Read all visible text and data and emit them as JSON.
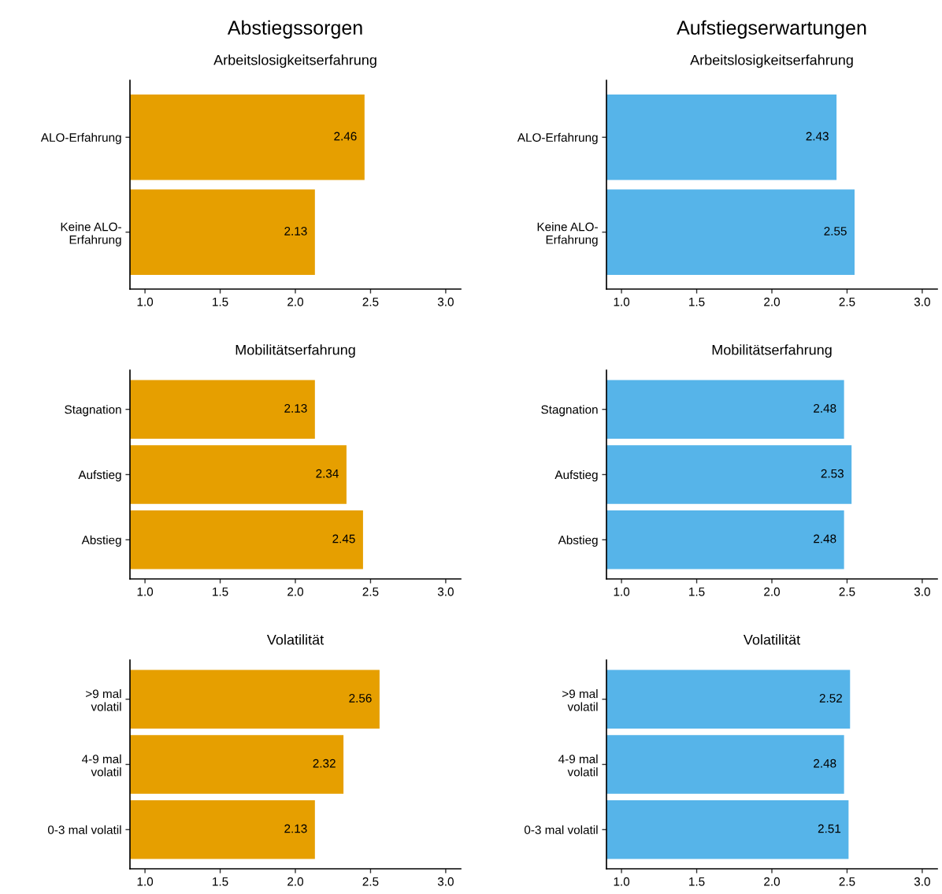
{
  "chart_data": [
    {
      "type": "bar",
      "orientation": "horizontal",
      "title": "Abstiegssorgen",
      "subtitle": "Arbeitslosigkeitserfahrung",
      "categories": [
        "ALO-Erfahrung",
        "Keine ALO-\nErfahrung"
      ],
      "values": [
        2.46,
        2.13
      ],
      "color": "#e69f00",
      "xlim": [
        0.9,
        3.1
      ],
      "xticks": [
        {
          "value": 1,
          "label": "1.0"
        },
        {
          "value": 1.5,
          "label": "1.5"
        },
        {
          "value": 2,
          "label": "2.0"
        },
        {
          "value": 2.5,
          "label": "2.5"
        },
        {
          "value": 3,
          "label": "3.0"
        }
      ],
      "data_labels": true,
      "grid": false,
      "legend": false
    },
    {
      "type": "bar",
      "orientation": "horizontal",
      "title": "Aufstiegserwartungen",
      "subtitle": "Arbeitslosigkeitserfahrung",
      "categories": [
        "ALO-Erfahrung",
        "Keine ALO-\nErfahrung"
      ],
      "values": [
        2.43,
        2.55
      ],
      "color": "#56b4e9",
      "xlim": [
        0.9,
        3.1
      ],
      "xticks": [
        {
          "value": 1,
          "label": "1.0"
        },
        {
          "value": 1.5,
          "label": "1.5"
        },
        {
          "value": 2,
          "label": "2.0"
        },
        {
          "value": 2.5,
          "label": "2.5"
        },
        {
          "value": 3,
          "label": "3.0"
        }
      ],
      "data_labels": true,
      "grid": false,
      "legend": false
    },
    {
      "type": "bar",
      "orientation": "horizontal",
      "subtitle": "Mobilitätserfahrung",
      "categories": [
        "Stagnation",
        "Aufstieg",
        "Abstieg"
      ],
      "values": [
        2.13,
        2.34,
        2.45
      ],
      "color": "#e69f00",
      "xlim": [
        0.9,
        3.1
      ],
      "xticks": [
        {
          "value": 1,
          "label": "1.0"
        },
        {
          "value": 1.5,
          "label": "1.5"
        },
        {
          "value": 2,
          "label": "2.0"
        },
        {
          "value": 2.5,
          "label": "2.5"
        },
        {
          "value": 3,
          "label": "3.0"
        }
      ],
      "data_labels": true,
      "grid": false,
      "legend": false
    },
    {
      "type": "bar",
      "orientation": "horizontal",
      "subtitle": "Mobilitätserfahrung",
      "categories": [
        "Stagnation",
        "Aufstieg",
        "Abstieg"
      ],
      "values": [
        2.48,
        2.53,
        2.48
      ],
      "color": "#56b4e9",
      "xlim": [
        0.9,
        3.1
      ],
      "xticks": [
        {
          "value": 1,
          "label": "1.0"
        },
        {
          "value": 1.5,
          "label": "1.5"
        },
        {
          "value": 2,
          "label": "2.0"
        },
        {
          "value": 2.5,
          "label": "2.5"
        },
        {
          "value": 3,
          "label": "3.0"
        }
      ],
      "data_labels": true,
      "grid": false,
      "legend": false
    },
    {
      "type": "bar",
      "orientation": "horizontal",
      "subtitle": "Volatilität",
      "categories": [
        ">9 mal\nvolatil",
        "4-9 mal\nvolatil",
        "0-3 mal volatil"
      ],
      "values": [
        2.56,
        2.32,
        2.13
      ],
      "color": "#e69f00",
      "xlim": [
        0.9,
        3.1
      ],
      "xticks": [
        {
          "value": 1,
          "label": "1.0"
        },
        {
          "value": 1.5,
          "label": "1.5"
        },
        {
          "value": 2,
          "label": "2.0"
        },
        {
          "value": 2.5,
          "label": "2.5"
        },
        {
          "value": 3,
          "label": "3.0"
        }
      ],
      "data_labels": true,
      "grid": false,
      "legend": false
    },
    {
      "type": "bar",
      "orientation": "horizontal",
      "subtitle": "Volatilität",
      "categories": [
        ">9 mal\nvolatil",
        "4-9 mal\nvolatil",
        "0-3 mal volatil"
      ],
      "values": [
        2.52,
        2.48,
        2.51
      ],
      "color": "#56b4e9",
      "xlim": [
        0.9,
        3.1
      ],
      "xticks": [
        {
          "value": 1,
          "label": "1.0"
        },
        {
          "value": 1.5,
          "label": "1.5"
        },
        {
          "value": 2,
          "label": "2.0"
        },
        {
          "value": 2.5,
          "label": "2.5"
        },
        {
          "value": 3,
          "label": "3.0"
        }
      ],
      "data_labels": true,
      "grid": false,
      "legend": false
    }
  ]
}
